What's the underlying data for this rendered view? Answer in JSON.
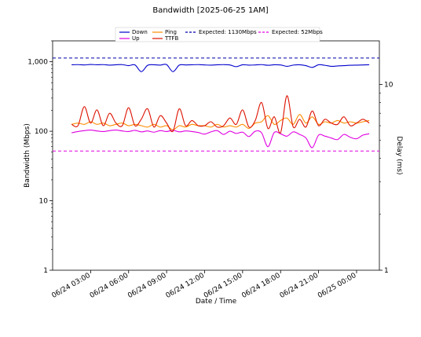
{
  "chart_data": {
    "type": "line",
    "title": "Bandwidth [2025-06-25 1AM]",
    "xlabel": "Date / Time",
    "ylabel": "Bandwidth (Mbps)",
    "y2label": "Delay (ms)",
    "yscale": "log",
    "ylim": [
      1,
      2000
    ],
    "y2scale": "log",
    "y2_ticks": [
      {
        "value": 1,
        "label": "1"
      },
      {
        "value": 10,
        "label": "10"
      }
    ],
    "x_ticks": [
      "06/24 03:00",
      "06/24 06:00",
      "06/24 09:00",
      "06/24 12:00",
      "06/24 15:00",
      "06/24 18:00",
      "06/24 21:00",
      "06/25 00:00"
    ],
    "y_ticks": [
      {
        "value": 1,
        "label": "1"
      },
      {
        "value": 10,
        "label": "10"
      },
      {
        "value": 100,
        "label": "100"
      },
      {
        "value": 1000,
        "label": "1,000"
      }
    ],
    "legend_position": "top",
    "colors": {
      "down": "#0000cc",
      "up": "#e000e0",
      "ping": "#ff8c00",
      "ttfb": "#dd1100",
      "expected_down": "#0000aa",
      "expected_up": "#e000e0"
    },
    "series": [
      {
        "name": "Down",
        "axis": "left",
        "style": "solid",
        "color": "#0000cc",
        "x": [
          1.5,
          2,
          2.5,
          3,
          3.5,
          4,
          4.5,
          5,
          5.5,
          6,
          6.5,
          7,
          7.5,
          8,
          8.5,
          9,
          9.5,
          10,
          10.5,
          11,
          11.5,
          12,
          12.5,
          13,
          13.5,
          14,
          14.5,
          15,
          15.5,
          16,
          16.5,
          17,
          17.5,
          18,
          18.5,
          19,
          19.5,
          20,
          20.5,
          21,
          21.5,
          22,
          22.5,
          23,
          23.5,
          24,
          24.5,
          25
        ],
        "y": [
          905,
          910,
          900,
          915,
          905,
          910,
          895,
          905,
          910,
          880,
          900,
          720,
          890,
          905,
          895,
          910,
          720,
          895,
          900,
          905,
          910,
          900,
          895,
          905,
          910,
          900,
          850,
          905,
          895,
          900,
          910,
          890,
          905,
          900,
          860,
          895,
          905,
          880,
          830,
          905,
          890,
          860,
          870,
          880,
          890,
          895,
          900,
          905
        ]
      },
      {
        "name": "Up",
        "axis": "left",
        "style": "solid",
        "color": "#e000e0",
        "x": [
          1.5,
          2,
          2.5,
          3,
          3.5,
          4,
          4.5,
          5,
          5.5,
          6,
          6.5,
          7,
          7.5,
          8,
          8.5,
          9,
          9.5,
          10,
          10.5,
          11,
          11.5,
          12,
          12.5,
          13,
          13.5,
          14,
          14.5,
          15,
          15.5,
          16,
          16.5,
          17,
          17.5,
          18,
          18.5,
          19,
          19.5,
          20,
          20.5,
          21,
          21.5,
          22,
          22.5,
          23,
          23.5,
          24,
          24.5,
          25
        ],
        "y": [
          95,
          99,
          102,
          104,
          101,
          99,
          102,
          104,
          101,
          99,
          103,
          98,
          101,
          97,
          102,
          99,
          103,
          98,
          101,
          99,
          96,
          91,
          98,
          102,
          90,
          100,
          93,
          97,
          84,
          100,
          95,
          60,
          96,
          92,
          85,
          98,
          90,
          80,
          58,
          88,
          85,
          80,
          76,
          90,
          82,
          78,
          88,
          92
        ]
      },
      {
        "name": "Ping",
        "axis": "right",
        "style": "solid",
        "color": "#ff8c00",
        "x": [
          1.5,
          2,
          2.5,
          3,
          3.5,
          4,
          4.5,
          5,
          5.5,
          6,
          6.5,
          7,
          7.5,
          8,
          8.5,
          9,
          9.5,
          10,
          10.5,
          11,
          11.5,
          12,
          12.5,
          13,
          13.5,
          14,
          14.5,
          15,
          15.5,
          16,
          16.5,
          17,
          17.5,
          18,
          18.5,
          19,
          19.5,
          20,
          20.5,
          21,
          21.5,
          22,
          22.5,
          23,
          23.5,
          24,
          24.5,
          25
        ],
        "y": [
          6.1,
          6.2,
          6.1,
          6.3,
          6.1,
          6.2,
          6.0,
          6.1,
          6.2,
          6.0,
          6.1,
          6.0,
          5.9,
          6.1,
          5.9,
          6.0,
          5.7,
          6.0,
          5.9,
          6.1,
          6.0,
          6.0,
          5.9,
          6.1,
          5.9,
          6.0,
          5.9,
          6.1,
          5.8,
          6.2,
          6.3,
          6.8,
          6.1,
          6.4,
          6.6,
          6.1,
          6.9,
          6.2,
          6.7,
          6.1,
          6.3,
          6.2,
          6.4,
          6.2,
          6.3,
          6.2,
          6.3,
          6.4
        ]
      },
      {
        "name": "TTFB",
        "axis": "right",
        "style": "solid",
        "color": "#dd1100",
        "x": [
          1.5,
          2,
          2.5,
          3,
          3.5,
          4,
          4.5,
          5,
          5.5,
          6,
          6.5,
          7,
          7.5,
          8,
          8.5,
          9,
          9.5,
          10,
          10.5,
          11,
          11.5,
          12,
          12.5,
          13,
          13.5,
          14,
          14.5,
          15,
          15.5,
          16,
          16.5,
          17,
          17.5,
          18,
          18.5,
          19,
          19.5,
          20,
          20.5,
          21,
          21.5,
          22,
          22.5,
          23,
          23.5,
          24,
          24.5,
          25
        ],
        "y": [
          6.1,
          6.0,
          7.6,
          6.2,
          7.3,
          6.0,
          7.0,
          6.2,
          6.0,
          7.5,
          6.0,
          6.5,
          7.4,
          5.9,
          6.8,
          6.2,
          5.6,
          7.4,
          6.0,
          6.4,
          6.0,
          6.0,
          6.3,
          5.9,
          6.0,
          6.6,
          6.1,
          7.3,
          5.9,
          6.4,
          8.0,
          5.8,
          6.7,
          5.5,
          8.7,
          5.9,
          6.5,
          5.9,
          7.2,
          6.0,
          6.5,
          6.2,
          6.1,
          6.7,
          6.0,
          6.2,
          6.5,
          6.2
        ]
      },
      {
        "name": "Expected: 1130Mbps",
        "axis": "left",
        "style": "dashed",
        "color": "#0000aa",
        "constant": 1130
      },
      {
        "name": "Expected: 52Mbps",
        "axis": "left",
        "style": "dashed",
        "color": "#e000e0",
        "constant": 52
      }
    ]
  }
}
